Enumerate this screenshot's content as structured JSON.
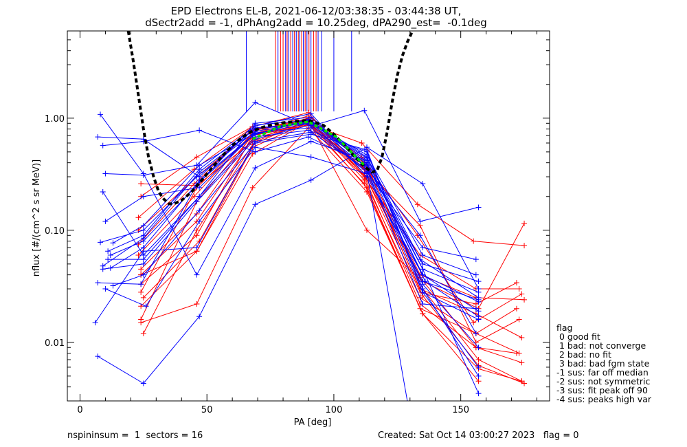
{
  "title_line1": "EPD Electrons EL-B, 2021-06-12/03:38:35 - 03:44:38 UT,",
  "title_line2": "dSectr2add = -1, dPhAng2add = 10.25deg, dPA290_est=  -0.1deg",
  "footer_left": "nspininsum =  1  sectors = 16",
  "footer_right": "Created: Sat Oct 14 03:00:27 2023   flag = 0",
  "legend": {
    "title": "flag",
    "items": [
      " 0 good fit",
      " 1 bad: not converge",
      " 2 bad: no fit",
      " 3 bad: bad fgm state",
      "-1 sus: far off median",
      "-2 sus: not symmetric",
      "-3 sus: fit peak off 90",
      "-4 sus: peaks high var"
    ]
  },
  "chart_data": {
    "type": "line",
    "xlabel": "PA [deg]",
    "ylabel": "nflux [#/(cm^2 s sr MeV)]",
    "xlim": [
      -5,
      185
    ],
    "ylim": [
      0.003,
      6
    ],
    "yscale": "log",
    "xticks": [
      0,
      50,
      100,
      150
    ],
    "yticks": [
      0.01,
      0.1,
      1.0
    ],
    "yticklabels": [
      "0.01",
      "0.10",
      "1.00"
    ],
    "colors": {
      "red": "#ff0000",
      "blue": "#0000ff",
      "fit_black": "#000000",
      "median_green": "#00e000"
    },
    "series": [
      {
        "color": "red",
        "x": [
          24,
          46,
          68,
          90,
          113,
          135,
          157
        ],
        "y": [
          0.015,
          0.022,
          0.24,
          0.82,
          0.22,
          0.018,
          0.0045
        ]
      },
      {
        "color": "red",
        "x": [
          24,
          46,
          68,
          90,
          113,
          135,
          157,
          175
        ],
        "y": [
          0.021,
          0.065,
          0.55,
          0.92,
          0.34,
          0.026,
          0.0062,
          0.0043
        ]
      },
      {
        "color": "red",
        "x": [
          25,
          47,
          69,
          91,
          113,
          135,
          157,
          174
        ],
        "y": [
          0.025,
          0.08,
          0.62,
          0.95,
          0.38,
          0.03,
          0.007,
          0.0045
        ]
      },
      {
        "color": "red",
        "x": [
          24,
          46,
          68,
          90,
          112,
          134,
          156,
          174
        ],
        "y": [
          0.033,
          0.09,
          0.7,
          0.9,
          0.3,
          0.022,
          0.009,
          0.0066
        ]
      },
      {
        "color": "red",
        "x": [
          24,
          46,
          68,
          90,
          112,
          134,
          156,
          173
        ],
        "y": [
          0.04,
          0.12,
          0.66,
          0.88,
          0.26,
          0.02,
          0.012,
          0.008
        ]
      },
      {
        "color": "red",
        "x": [
          24,
          46,
          68,
          90,
          112,
          134,
          156,
          174
        ],
        "y": [
          0.045,
          0.14,
          0.72,
          1.0,
          0.35,
          0.03,
          0.018,
          0.011
        ]
      },
      {
        "color": "red",
        "x": [
          23,
          45,
          68,
          90,
          112,
          134,
          156,
          175
        ],
        "y": [
          0.06,
          0.2,
          0.74,
          1.05,
          0.4,
          0.04,
          0.025,
          0.024
        ]
      },
      {
        "color": "red",
        "x": [
          23,
          45,
          67,
          89,
          111,
          133,
          155,
          174
        ],
        "y": [
          0.075,
          0.26,
          0.76,
          0.98,
          0.45,
          0.09,
          0.015,
          0.027
        ]
      },
      {
        "color": "red",
        "x": [
          23,
          46,
          68,
          90,
          113,
          135,
          157,
          175
        ],
        "y": [
          0.1,
          0.3,
          0.78,
          0.95,
          0.1,
          0.035,
          0.02,
          0.115
        ]
      },
      {
        "color": "red",
        "x": [
          23,
          45,
          67,
          89,
          111,
          133,
          155,
          175
        ],
        "y": [
          0.13,
          0.35,
          0.8,
          0.9,
          0.6,
          0.17,
          0.08,
          0.073
        ]
      },
      {
        "color": "red",
        "x": [
          24,
          46,
          68,
          90,
          112,
          134,
          156,
          173
        ],
        "y": [
          0.2,
          0.45,
          0.84,
          1.12,
          0.3,
          0.06,
          0.03,
          0.03
        ]
      },
      {
        "color": "red",
        "x": [
          24,
          46,
          68,
          90,
          112,
          134,
          156,
          172
        ],
        "y": [
          0.26,
          0.25,
          0.62,
          1.0,
          0.28,
          0.025,
          0.012,
          0.02
        ]
      },
      {
        "color": "red",
        "x": [
          24,
          46,
          68,
          90,
          113,
          135,
          157,
          174
        ],
        "y": [
          0.04,
          0.065,
          0.48,
          0.93,
          0.24,
          0.018,
          0.0058,
          0.0045
        ]
      },
      {
        "color": "red",
        "x": [
          25,
          46,
          68,
          90,
          112,
          134,
          156,
          172
        ],
        "y": [
          0.012,
          0.1,
          0.58,
          0.97,
          0.32,
          0.028,
          0.022,
          0.034
        ]
      },
      {
        "color": "red",
        "x": [
          24,
          46,
          68,
          90,
          112,
          134,
          156,
          173
        ],
        "y": [
          0.016,
          0.18,
          0.7,
          0.87,
          0.36,
          0.11,
          0.01,
          0.016
        ]
      },
      {
        "color": "red",
        "x": [
          24,
          46,
          68,
          90,
          112,
          134,
          156,
          172
        ],
        "y": [
          0.028,
          0.24,
          0.72,
          0.94,
          0.31,
          0.038,
          0.009,
          0.008
        ]
      },
      {
        "color": "blue",
        "x": [
          7,
          25,
          47,
          69,
          91,
          113,
          135,
          157
        ],
        "y": [
          0.0075,
          0.0043,
          0.017,
          0.17,
          0.28,
          0.55,
          0.26,
          0.03
        ]
      },
      {
        "color": "blue",
        "x": [
          8,
          25,
          46,
          69,
          91,
          113,
          135,
          157
        ],
        "y": [
          1.08,
          0.32,
          0.04,
          0.36,
          0.62,
          0.42,
          0.04,
          0.023
        ]
      },
      {
        "color": "blue",
        "x": [
          9,
          25,
          47,
          69,
          90,
          113,
          134,
          157
        ],
        "y": [
          0.57,
          0.62,
          0.78,
          0.5,
          0.68,
          0.38,
          0.055,
          0.025
        ]
      },
      {
        "color": "blue",
        "x": [
          10,
          25,
          46,
          69,
          91,
          112,
          134,
          157
        ],
        "y": [
          0.32,
          0.31,
          0.38,
          1.38,
          0.85,
          1.17,
          0.12,
          0.16
        ]
      },
      {
        "color": "blue",
        "x": [
          9,
          25,
          47,
          69,
          91,
          113,
          135,
          157
        ],
        "y": [
          0.22,
          0.06,
          0.2,
          0.87,
          0.96,
          0.4,
          0.033,
          0.009
        ]
      },
      {
        "color": "blue",
        "x": [
          10,
          25,
          47,
          68,
          90,
          113,
          136,
          157
        ],
        "y": [
          0.12,
          0.2,
          0.24,
          0.7,
          0.98,
          0.42,
          0.035,
          0.017
        ]
      },
      {
        "color": "blue",
        "x": [
          7,
          25,
          47,
          69,
          91,
          113,
          135,
          157
        ],
        "y": [
          0.68,
          0.65,
          0.3,
          0.82,
          0.9,
          0.44,
          0.045,
          0.028
        ]
      },
      {
        "color": "blue",
        "x": [
          8,
          25,
          46,
          69,
          91,
          113,
          135,
          157
        ],
        "y": [
          0.078,
          0.1,
          0.3,
          0.76,
          0.93,
          0.45,
          0.05,
          0.035
        ]
      },
      {
        "color": "blue",
        "x": [
          9,
          25,
          47,
          69,
          91,
          113,
          135,
          156
        ],
        "y": [
          0.048,
          0.085,
          0.33,
          0.8,
          0.9,
          0.47,
          0.06,
          0.04
        ]
      },
      {
        "color": "blue",
        "x": [
          12,
          25,
          46,
          69,
          91,
          112,
          134,
          156
        ],
        "y": [
          0.06,
          0.08,
          0.25,
          0.9,
          1.02,
          0.38,
          0.09,
          0.012
        ]
      },
      {
        "color": "blue",
        "x": [
          11,
          25,
          47,
          69,
          90,
          113,
          135,
          157
        ],
        "y": [
          0.055,
          0.055,
          0.2,
          0.68,
          0.78,
          0.5,
          0.03,
          0.005
        ]
      },
      {
        "color": "blue",
        "x": [
          13,
          25,
          47,
          69,
          91,
          113,
          135,
          157
        ],
        "y": [
          0.032,
          0.04,
          0.15,
          0.6,
          0.72,
          0.52,
          0.028,
          0.006
        ]
      },
      {
        "color": "blue",
        "x": [
          6,
          25,
          46,
          69,
          91,
          113,
          135,
          156
        ],
        "y": [
          0.015,
          0.065,
          0.07,
          0.62,
          0.75,
          0.35,
          0.022,
          0.02
        ]
      },
      {
        "color": "blue",
        "x": [
          11,
          25,
          47,
          69,
          91,
          113,
          135,
          157
        ],
        "y": [
          0.065,
          0.09,
          0.35,
          0.85,
          1.1,
          0.3,
          0.04,
          0.019
        ]
      },
      {
        "color": "blue",
        "x": [
          10,
          26,
          47,
          69,
          91,
          113,
          135,
          157
        ],
        "y": [
          0.03,
          0.021,
          0.12,
          0.55,
          0.45,
          0.32,
          0.035,
          0.024
        ]
      },
      {
        "color": "blue",
        "x": [
          13,
          25,
          47,
          69,
          91,
          113,
          135,
          156
        ],
        "y": [
          0.077,
          0.11,
          0.38,
          0.74,
          0.82,
          0.33,
          0.07,
          0.055
        ]
      },
      {
        "color": "blue",
        "x": [
          7,
          24,
          47,
          69,
          91,
          113,
          135,
          157
        ],
        "y": [
          0.034,
          0.033,
          0.28,
          0.73,
          0.9,
          0.36,
          0.028,
          0.016
        ]
      },
      {
        "color": "blue",
        "x": [
          9,
          25,
          46,
          69,
          91,
          113,
          130,
          135
        ],
        "y": [
          0.045,
          0.05,
          0.18,
          0.65,
          0.87,
          0.33,
          0.0022,
          0.0022
        ]
      },
      {
        "color": "blue",
        "x": [
          12,
          25,
          46,
          69,
          90,
          113,
          135,
          157
        ],
        "y": [
          0.046,
          0.07,
          0.26,
          0.72,
          0.95,
          0.39,
          0.045,
          0.0035
        ]
      }
    ],
    "fit_curve": {
      "color": "fit_black",
      "x": [
        19,
        21,
        23,
        25,
        27,
        29,
        31,
        33,
        35,
        37,
        40,
        44,
        48,
        52,
        56,
        60,
        64,
        68,
        72,
        76,
        80,
        84,
        88,
        90,
        92,
        96,
        100,
        104,
        108,
        112,
        115,
        117,
        119,
        121,
        123,
        125,
        127,
        129,
        131
      ],
      "y": [
        6.0,
        3.2,
        1.6,
        0.8,
        0.45,
        0.3,
        0.22,
        0.19,
        0.172,
        0.172,
        0.185,
        0.22,
        0.28,
        0.36,
        0.46,
        0.57,
        0.68,
        0.77,
        0.83,
        0.88,
        0.91,
        0.93,
        0.95,
        0.95,
        0.93,
        0.86,
        0.72,
        0.58,
        0.46,
        0.37,
        0.33,
        0.34,
        0.45,
        0.75,
        1.4,
        2.4,
        3.6,
        4.8,
        6.0
      ]
    },
    "median_curve": {
      "color": "median_green",
      "x": [
        68,
        79,
        90,
        101,
        112
      ],
      "y": [
        0.65,
        0.85,
        0.93,
        0.68,
        0.38
      ]
    },
    "vertical_markers": {
      "bottom": 1.15,
      "top": 6,
      "lines": [
        {
          "x": 65.5,
          "color": "blue"
        },
        {
          "x": 77,
          "color": "red"
        },
        {
          "x": 78,
          "color": "blue"
        },
        {
          "x": 79,
          "color": "red"
        },
        {
          "x": 80,
          "color": "red"
        },
        {
          "x": 81,
          "color": "blue"
        },
        {
          "x": 81.6,
          "color": "red"
        },
        {
          "x": 82.2,
          "color": "blue"
        },
        {
          "x": 83,
          "color": "red"
        },
        {
          "x": 83.8,
          "color": "blue"
        },
        {
          "x": 84.5,
          "color": "red"
        },
        {
          "x": 85.2,
          "color": "blue"
        },
        {
          "x": 86,
          "color": "red"
        },
        {
          "x": 86.6,
          "color": "blue"
        },
        {
          "x": 87.3,
          "color": "red"
        },
        {
          "x": 88,
          "color": "blue"
        },
        {
          "x": 88.7,
          "color": "red"
        },
        {
          "x": 89.4,
          "color": "blue"
        },
        {
          "x": 90.2,
          "color": "red"
        },
        {
          "x": 91,
          "color": "blue"
        },
        {
          "x": 92,
          "color": "red"
        },
        {
          "x": 93,
          "color": "red"
        },
        {
          "x": 93.8,
          "color": "blue"
        },
        {
          "x": 95.2,
          "color": "blue"
        },
        {
          "x": 100,
          "color": "blue"
        },
        {
          "x": 107,
          "color": "blue"
        }
      ]
    }
  }
}
